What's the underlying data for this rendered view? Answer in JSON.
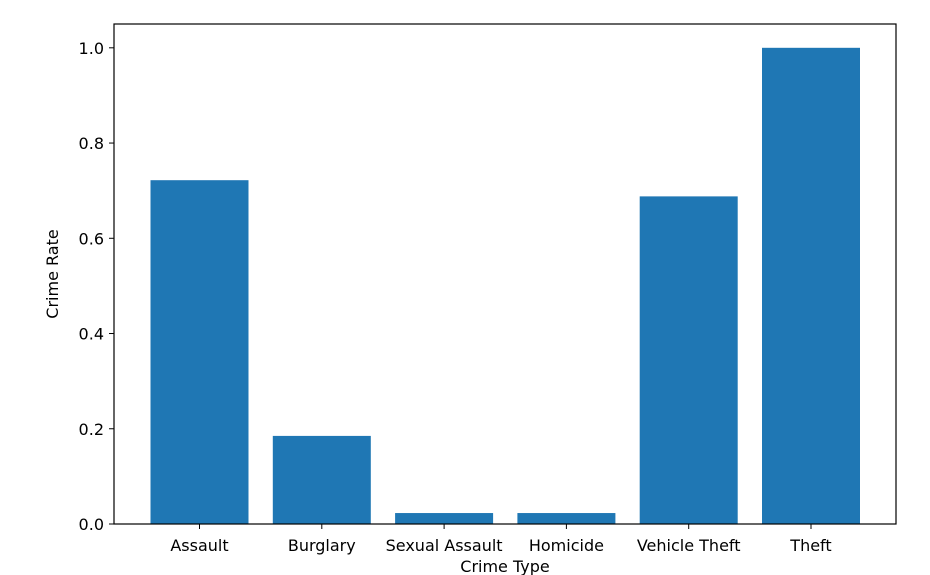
{
  "chart_data": {
    "type": "bar",
    "categories": [
      "Assault",
      "Burglary",
      "Sexual Assault",
      "Homicide",
      "Vehicle Theft",
      "Theft"
    ],
    "values": [
      0.722,
      0.185,
      0.023,
      0.023,
      0.688,
      1.0
    ],
    "xlabel": "Crime Type",
    "ylabel": "Crime Rate",
    "ylim": [
      0,
      1.05
    ],
    "yticks": [
      "0.0",
      "0.2",
      "0.4",
      "0.6",
      "0.8",
      "1.0"
    ],
    "grid": false,
    "bar_color": "#1f77b4"
  }
}
